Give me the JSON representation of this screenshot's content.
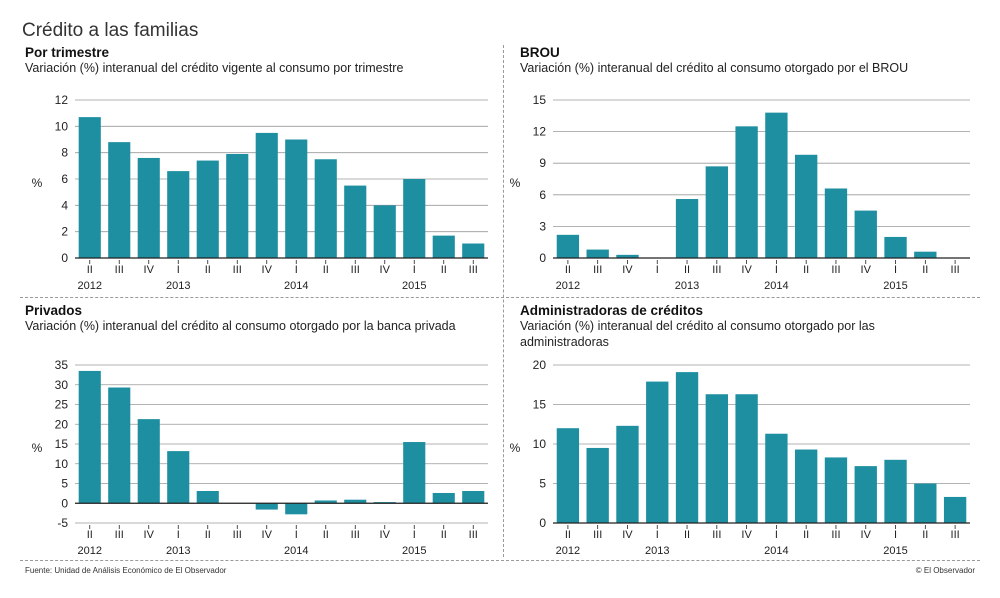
{
  "page_title": "Crédito a las familias",
  "footer": {
    "source": "Fuente: Unidad de Análisis Económico de El Observador",
    "credit": "© El Observador"
  },
  "colors": {
    "bar": "#1e8fa0",
    "grid": "#9a9a9a",
    "axis": "#222222"
  },
  "chart_data": [
    {
      "type": "bar",
      "heading": "Por trimestre",
      "title": "Variación (%) interanual del crédito vigente al consumo por trimestre",
      "ylabel": "%",
      "ylim": [
        0,
        12
      ],
      "yticks": [
        0,
        2,
        4,
        6,
        8,
        10,
        12
      ],
      "categories": [
        "II",
        "III",
        "IV",
        "I",
        "II",
        "III",
        "IV",
        "I",
        "II",
        "III",
        "IV",
        "I",
        "II",
        "III"
      ],
      "year_labels": [
        {
          "label": "2012",
          "index": 0
        },
        {
          "label": "2013",
          "index": 3
        },
        {
          "label": "2014",
          "index": 7
        },
        {
          "label": "2015",
          "index": 11
        }
      ],
      "values": [
        10.7,
        8.8,
        7.6,
        6.6,
        7.4,
        7.9,
        9.5,
        9.0,
        7.5,
        5.5,
        4.0,
        6.0,
        1.7,
        1.1
      ]
    },
    {
      "type": "bar",
      "heading": "BROU",
      "title": "Variación (%) interanual del crédito al consumo otorgado por el BROU",
      "ylabel": "%",
      "ylim": [
        0,
        15
      ],
      "yticks": [
        0,
        3,
        6,
        9,
        12,
        15
      ],
      "categories": [
        "II",
        "III",
        "IV",
        "I",
        "II",
        "III",
        "IV",
        "I",
        "II",
        "III",
        "IV",
        "I",
        "II",
        "III"
      ],
      "year_labels": [
        {
          "label": "2012",
          "index": 0
        },
        {
          "label": "2013",
          "index": 4
        },
        {
          "label": "2014",
          "index": 7
        },
        {
          "label": "2015",
          "index": 11
        }
      ],
      "values": [
        2.2,
        0.8,
        0.3,
        0.0,
        5.6,
        8.7,
        12.5,
        13.8,
        9.8,
        6.6,
        4.5,
        2.0,
        0.6,
        0.0
      ]
    },
    {
      "type": "bar",
      "heading": "Privados",
      "title": "Variación (%) interanual del crédito al consumo otorgado por la banca privada",
      "ylabel": "%",
      "ylim": [
        -5,
        35
      ],
      "yticks": [
        -5,
        0,
        5,
        10,
        15,
        20,
        25,
        30,
        35
      ],
      "categories": [
        "II",
        "III",
        "IV",
        "I",
        "II",
        "III",
        "IV",
        "I",
        "II",
        "III",
        "IV",
        "I",
        "II",
        "III"
      ],
      "year_labels": [
        {
          "label": "2012",
          "index": 0
        },
        {
          "label": "2013",
          "index": 3
        },
        {
          "label": "2014",
          "index": 7
        },
        {
          "label": "2015",
          "index": 11
        }
      ],
      "values": [
        33.5,
        29.3,
        21.3,
        13.2,
        3.1,
        0.0,
        -1.6,
        -2.8,
        0.7,
        0.9,
        0.3,
        15.5,
        2.6,
        3.1
      ]
    },
    {
      "type": "bar",
      "heading": "Administradoras de créditos",
      "title": "Variación (%) interanual del crédito al consumo otorgado por las administradoras",
      "ylabel": "%",
      "ylim": [
        0,
        20
      ],
      "yticks": [
        0,
        5,
        10,
        15,
        20
      ],
      "categories": [
        "II",
        "III",
        "IV",
        "I",
        "II",
        "III",
        "IV",
        "I",
        "II",
        "III",
        "IV",
        "I",
        "II",
        "III"
      ],
      "year_labels": [
        {
          "label": "2012",
          "index": 0
        },
        {
          "label": "2013",
          "index": 3
        },
        {
          "label": "2014",
          "index": 7
        },
        {
          "label": "2015",
          "index": 11
        }
      ],
      "values": [
        12.0,
        9.5,
        12.3,
        17.9,
        19.1,
        16.3,
        16.3,
        11.3,
        9.3,
        8.3,
        7.2,
        8.0,
        5.0,
        3.3
      ]
    }
  ]
}
